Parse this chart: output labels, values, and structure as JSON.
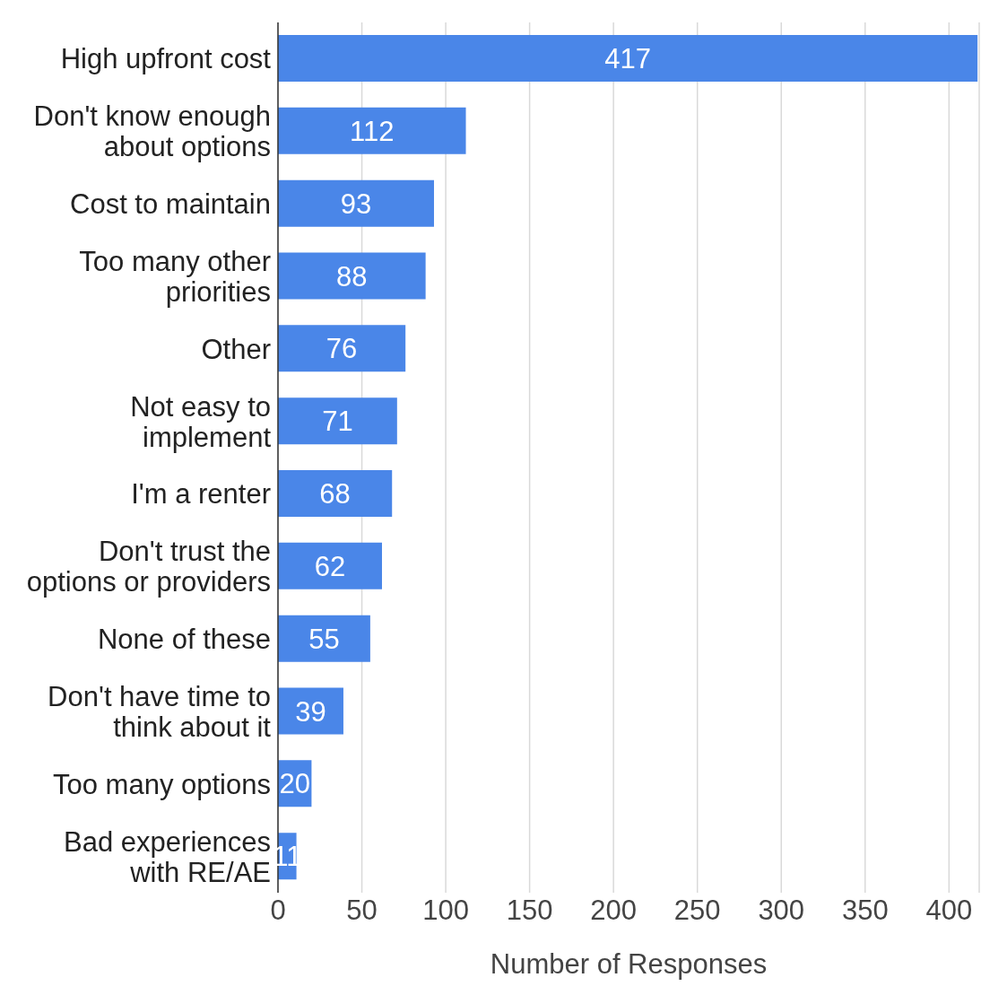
{
  "chart_data": {
    "type": "bar",
    "orientation": "horizontal",
    "xlabel": "Number of Responses",
    "categories": [
      "High upfront cost",
      "Don't know enough about options",
      "Cost to maintain",
      "Too many other priorities",
      "Other",
      "Not easy to implement",
      "I'm a renter",
      "Don't trust the options or providers",
      "None of these",
      "Don't have time to think about it",
      "Too many options",
      "Bad experiences with RE/AE"
    ],
    "values": [
      417,
      112,
      93,
      88,
      76,
      71,
      68,
      62,
      55,
      39,
      20,
      11
    ],
    "color": "#4a86e8",
    "xlim": [
      0,
      418
    ],
    "xticks": [
      0,
      50,
      100,
      150,
      200,
      250,
      300,
      350,
      400
    ],
    "grid": "x",
    "data_labels": true
  }
}
